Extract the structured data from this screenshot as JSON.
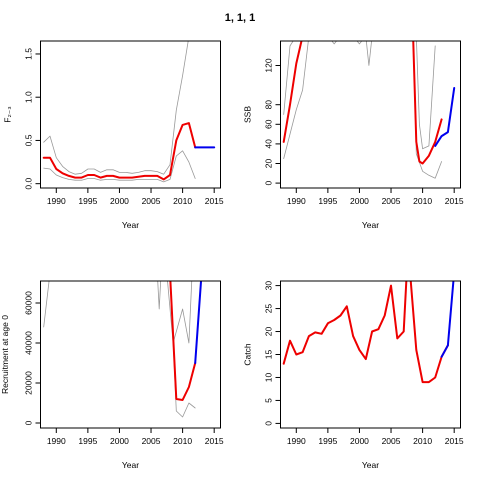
{
  "title": "1, 1, 1",
  "chart_data": [
    {
      "type": "line",
      "xlabel": "Year",
      "ylabel": "F₂₋₃",
      "xlim": [
        1987.5,
        2016
      ],
      "ylim": [
        -0.05,
        1.65
      ],
      "xticks": [
        1990,
        1995,
        2000,
        2005,
        2010,
        2015
      ],
      "yticks": [
        0.0,
        0.5,
        1.0,
        1.5
      ],
      "ytick_labels": [
        "0.0",
        "0.5",
        "1.0",
        "1.5"
      ],
      "series": [
        {
          "role": "estimate",
          "color": "#ee0000",
          "width": 2,
          "points": [
            [
              1988,
              0.3
            ],
            [
              1989,
              0.3
            ],
            [
              1990,
              0.17
            ],
            [
              1991,
              0.12
            ],
            [
              1992,
              0.09
            ],
            [
              1993,
              0.07
            ],
            [
              1994,
              0.07
            ],
            [
              1995,
              0.1
            ],
            [
              1996,
              0.1
            ],
            [
              1997,
              0.07
            ],
            [
              1998,
              0.09
            ],
            [
              1999,
              0.09
            ],
            [
              2000,
              0.07
            ],
            [
              2001,
              0.07
            ],
            [
              2002,
              0.07
            ],
            [
              2003,
              0.08
            ],
            [
              2004,
              0.09
            ],
            [
              2005,
              0.09
            ],
            [
              2006,
              0.09
            ],
            [
              2007,
              0.05
            ],
            [
              2008,
              0.1
            ],
            [
              2009,
              0.5
            ],
            [
              2010,
              0.68
            ],
            [
              2011,
              0.7
            ],
            [
              2012,
              0.42
            ]
          ]
        },
        {
          "role": "upper",
          "color": "#999999",
          "width": 0.8,
          "points": [
            [
              1988,
              0.48
            ],
            [
              1989,
              0.55
            ],
            [
              1990,
              0.3
            ],
            [
              1991,
              0.2
            ],
            [
              1992,
              0.14
            ],
            [
              1993,
              0.11
            ],
            [
              1994,
              0.12
            ],
            [
              1995,
              0.17
            ],
            [
              1996,
              0.17
            ],
            [
              1997,
              0.13
            ],
            [
              1998,
              0.16
            ],
            [
              1999,
              0.16
            ],
            [
              2000,
              0.13
            ],
            [
              2001,
              0.13
            ],
            [
              2002,
              0.12
            ],
            [
              2003,
              0.13
            ],
            [
              2004,
              0.15
            ],
            [
              2005,
              0.15
            ],
            [
              2006,
              0.14
            ],
            [
              2007,
              0.11
            ],
            [
              2008,
              0.22
            ],
            [
              2009,
              0.85
            ],
            [
              2010,
              1.25
            ],
            [
              2011,
              1.7
            ]
          ]
        },
        {
          "role": "lower",
          "color": "#999999",
          "width": 0.8,
          "points": [
            [
              1988,
              0.18
            ],
            [
              1989,
              0.17
            ],
            [
              1990,
              0.1
            ],
            [
              1991,
              0.07
            ],
            [
              1992,
              0.05
            ],
            [
              1993,
              0.04
            ],
            [
              1994,
              0.04
            ],
            [
              1995,
              0.06
            ],
            [
              1996,
              0.06
            ],
            [
              1997,
              0.04
            ],
            [
              1998,
              0.05
            ],
            [
              1999,
              0.05
            ],
            [
              2000,
              0.04
            ],
            [
              2001,
              0.04
            ],
            [
              2002,
              0.04
            ],
            [
              2003,
              0.05
            ],
            [
              2004,
              0.05
            ],
            [
              2005,
              0.05
            ],
            [
              2006,
              0.05
            ],
            [
              2007,
              0.02
            ],
            [
              2008,
              0.05
            ],
            [
              2009,
              0.32
            ],
            [
              2010,
              0.38
            ],
            [
              2011,
              0.25
            ],
            [
              2012,
              0.06
            ]
          ]
        },
        {
          "role": "projection",
          "color": "#0000ee",
          "width": 2,
          "points": [
            [
              2012,
              0.42
            ],
            [
              2013,
              0.42
            ],
            [
              2014,
              0.42
            ],
            [
              2015,
              0.42
            ]
          ]
        }
      ]
    },
    {
      "type": "line",
      "xlabel": "Year",
      "ylabel": "SSB",
      "xlim": [
        1987.5,
        2016
      ],
      "ylim": [
        -5,
        145
      ],
      "xticks": [
        1990,
        1995,
        2000,
        2005,
        2010,
        2015
      ],
      "yticks": [
        0,
        20,
        40,
        60,
        80,
        120
      ],
      "ytick_labels": [
        "0",
        "20",
        "40",
        "60",
        "80",
        "120"
      ],
      "series": [
        {
          "role": "estimate",
          "color": "#ee0000",
          "width": 2,
          "points": [
            [
              1988,
              42
            ],
            [
              1989,
              80
            ],
            [
              1990,
              122
            ],
            [
              1991,
              150
            ],
            [
              2008.5,
              150
            ],
            [
              2009,
              42
            ],
            [
              2009.5,
              22
            ],
            [
              2010,
              20
            ],
            [
              2011,
              28
            ],
            [
              2012,
              42
            ],
            [
              2013,
              65
            ]
          ]
        },
        {
          "role": "upper",
          "color": "#999999",
          "width": 0.8,
          "points": [
            [
              1988,
              70
            ],
            [
              1989,
              140
            ],
            [
              1990,
              150
            ],
            [
              1995,
              150
            ],
            [
              1996,
              142
            ],
            [
              1997,
              150
            ],
            [
              1999,
              150
            ],
            [
              2000,
              142
            ],
            [
              2001,
              150
            ],
            [
              2001.5,
              120
            ],
            [
              2002,
              150
            ],
            [
              2009,
              150
            ],
            [
              2009.5,
              60
            ],
            [
              2010,
              35
            ],
            [
              2011,
              38
            ],
            [
              2012,
              140
            ]
          ]
        },
        {
          "role": "lower",
          "color": "#999999",
          "width": 0.8,
          "points": [
            [
              1988,
              25
            ],
            [
              1989,
              50
            ],
            [
              1990,
              75
            ],
            [
              1991,
              95
            ],
            [
              1992,
              150
            ],
            [
              2008.5,
              150
            ],
            [
              2009,
              30
            ],
            [
              2010,
              12
            ],
            [
              2011,
              8
            ],
            [
              2012,
              5
            ],
            [
              2013,
              22
            ]
          ]
        },
        {
          "role": "projection",
          "color": "#0000ee",
          "width": 2,
          "points": [
            [
              2012,
              38
            ],
            [
              2013,
              48
            ],
            [
              2014,
              52
            ],
            [
              2015,
              97
            ]
          ]
        }
      ]
    },
    {
      "type": "line",
      "xlabel": "Year",
      "ylabel": "Recruitment at age 0",
      "xlim": [
        1987.5,
        2016
      ],
      "ylim": [
        -2500,
        71000
      ],
      "xticks": [
        1990,
        1995,
        2000,
        2005,
        2010,
        2015
      ],
      "yticks": [
        0,
        20000,
        40000,
        60000
      ],
      "ytick_labels": [
        "0",
        "20000",
        "40000",
        "60000"
      ],
      "series": [
        {
          "role": "estimate",
          "color": "#ee0000",
          "width": 2,
          "points": [
            [
              2008,
              75000
            ],
            [
              2009,
              12000
            ],
            [
              2010,
              11500
            ],
            [
              2011,
              18000
            ],
            [
              2012,
              30000
            ]
          ]
        },
        {
          "role": "upper",
          "color": "#999999",
          "width": 0.8,
          "points": [
            [
              1988,
              48000
            ],
            [
              1989,
              75000
            ],
            [
              2006,
              75000
            ],
            [
              2006.3,
              57000
            ],
            [
              2006.6,
              75000
            ],
            [
              2007.5,
              75000
            ],
            [
              2008.5,
              40000
            ],
            [
              2010,
              57000
            ],
            [
              2011,
              40000
            ],
            [
              2011.5,
              75000
            ]
          ]
        },
        {
          "role": "lower",
          "color": "#999999",
          "width": 0.8,
          "points": [
            [
              2008,
              75000
            ],
            [
              2009,
              6000
            ],
            [
              2010,
              3000
            ],
            [
              2011,
              10000
            ],
            [
              2012,
              7500
            ]
          ]
        },
        {
          "role": "projection",
          "color": "#0000ee",
          "width": 2,
          "points": [
            [
              2012,
              30000
            ],
            [
              2013,
              75000
            ]
          ]
        }
      ]
    },
    {
      "type": "line",
      "xlabel": "Year",
      "ylabel": "Catch",
      "xlim": [
        1987.5,
        2016
      ],
      "ylim": [
        -1,
        31
      ],
      "xticks": [
        1990,
        1995,
        2000,
        2005,
        2010,
        2015
      ],
      "yticks": [
        0,
        5,
        10,
        15,
        20,
        25,
        30
      ],
      "ytick_labels": [
        "0",
        "5",
        "10",
        "15",
        "20",
        "25",
        "30"
      ],
      "series": [
        {
          "role": "estimate",
          "color": "#ee0000",
          "width": 2,
          "points": [
            [
              1988,
              13
            ],
            [
              1989,
              18
            ],
            [
              1990,
              15
            ],
            [
              1991,
              15.5
            ],
            [
              1992,
              19
            ],
            [
              1993,
              19.8
            ],
            [
              1994,
              19.5
            ],
            [
              1995,
              21.8
            ],
            [
              1996,
              22.5
            ],
            [
              1997,
              23.5
            ],
            [
              1998,
              25.5
            ],
            [
              1999,
              19
            ],
            [
              2000,
              16
            ],
            [
              2001,
              14
            ],
            [
              2002,
              20
            ],
            [
              2003,
              20.5
            ],
            [
              2004,
              23.5
            ],
            [
              2005,
              30
            ],
            [
              2006,
              18.5
            ],
            [
              2007,
              20
            ],
            [
              2007.5,
              33
            ],
            [
              2008,
              33
            ],
            [
              2009,
              16
            ],
            [
              2010,
              9
            ],
            [
              2011,
              9
            ],
            [
              2012,
              10
            ],
            [
              2013,
              14.5
            ],
            [
              2014,
              17
            ]
          ]
        },
        {
          "role": "projection",
          "color": "#0000ee",
          "width": 2,
          "points": [
            [
              2013,
              14.5
            ],
            [
              2014,
              17
            ],
            [
              2015,
              33
            ]
          ]
        }
      ]
    }
  ]
}
